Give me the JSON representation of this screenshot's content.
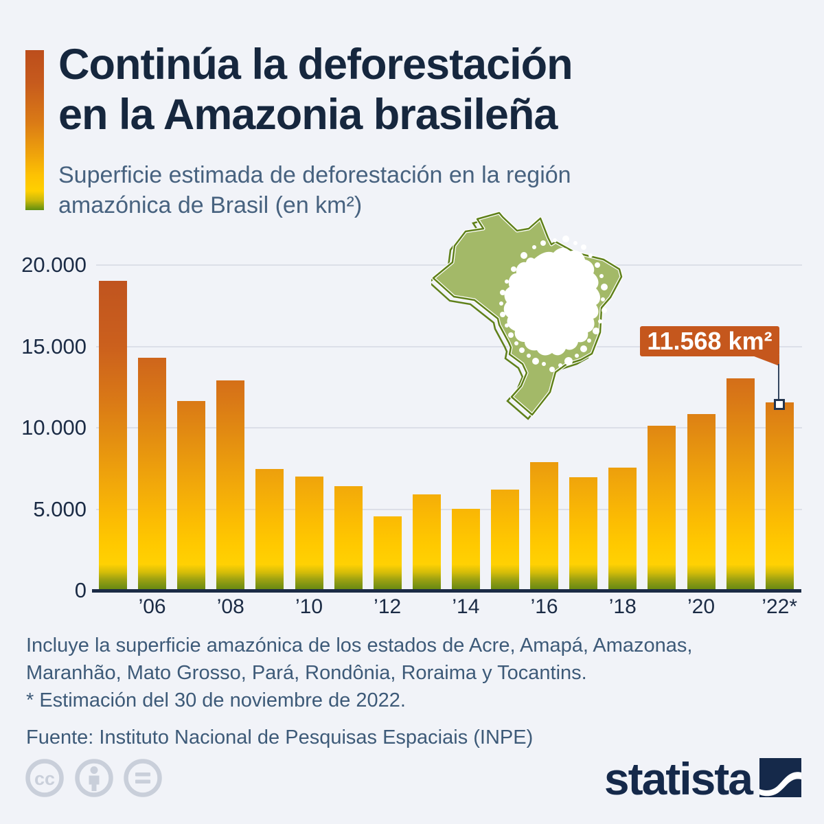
{
  "header": {
    "title_line1": "Continúa la deforestación",
    "title_line2": "en la Amazonia brasileña",
    "subtitle_line1": "Superficie estimada de deforestación en la región",
    "subtitle_line2": "amazónica de Brasil (en km²)"
  },
  "chart_data": {
    "type": "bar",
    "title": "Superficie estimada de deforestación en la región amazónica de Brasil (en km²)",
    "xlabel": "",
    "ylabel": "km²",
    "ylim": [
      0,
      20000
    ],
    "grid": true,
    "legend": "none",
    "categories": [
      "2005",
      "2006",
      "2007",
      "2008",
      "2009",
      "2010",
      "2011",
      "2012",
      "2013",
      "2014",
      "2015",
      "2016",
      "2017",
      "2018",
      "2019",
      "2020",
      "2021",
      "2022*"
    ],
    "values": [
      19014,
      14286,
      11651,
      12911,
      7464,
      7000,
      6418,
      4571,
      5891,
      5012,
      6207,
      7893,
      6947,
      7536,
      10129,
      10851,
      13038,
      11568
    ],
    "y_ticks": [
      {
        "label": "20.000",
        "value": 20000
      },
      {
        "label": "15.000",
        "value": 15000
      },
      {
        "label": "10.000",
        "value": 10000
      },
      {
        "label": "5.000",
        "value": 5000
      },
      {
        "label": "0",
        "value": 0
      }
    ],
    "x_ticks": [
      {
        "label": "’06",
        "category_index": 1
      },
      {
        "label": "’08",
        "category_index": 3
      },
      {
        "label": "’10",
        "category_index": 5
      },
      {
        "label": "’12",
        "category_index": 7
      },
      {
        "label": "’14",
        "category_index": 9
      },
      {
        "label": "’16",
        "category_index": 11
      },
      {
        "label": "’18",
        "category_index": 13
      },
      {
        "label": "’20",
        "category_index": 15
      },
      {
        "label": "’22*",
        "category_index": 17
      }
    ],
    "annotation": {
      "text": "11.568 km²",
      "category": "2022*",
      "value": 11568
    }
  },
  "footnotes": {
    "line1": "Incluye la superficie amazónica de los estados de Acre, Amapá, Amazonas,",
    "line2": "Maranhão, Mato Grosso, Pará, Rondônia, Roraima y Tocantins.",
    "line3": "* Estimación del 30 de noviembre de 2022.",
    "source": "Fuente: Instituto Nacional de Pesquisas Espaciais (INPE)"
  },
  "branding": {
    "logo_text": "statista",
    "license_icons": [
      "cc-icon",
      "attribution-person-icon",
      "no-derivatives-equals-icon"
    ]
  },
  "colors": {
    "background": "#f1f3f8",
    "title": "#16273e",
    "subtitle": "#47627f",
    "axis_text": "#1b2b45",
    "axis_line": "#1b2b45",
    "gridline": "#dcdfe8",
    "callout_bg": "#c5571d",
    "callout_text": "#ffffff",
    "bar_gradient_top": "#bb4d1d",
    "bar_gradient_mid": "#ffc900",
    "bar_gradient_bottom": "#648610",
    "map_fill": "#a3b968",
    "map_stroke": "#5f8019",
    "license_icon": "#c9cfda",
    "logo": "#15294a"
  }
}
